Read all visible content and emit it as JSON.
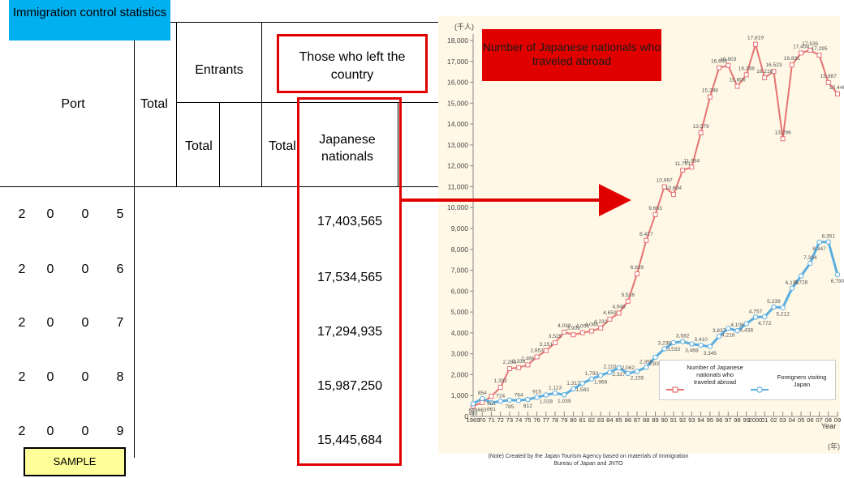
{
  "table": {
    "title": "Immigration control statistics",
    "port_header": "Port",
    "total_header": "Total",
    "entrants_header": "Entrants",
    "entrants_total": "Total",
    "left_header": "Those who left the country",
    "left_total": "Total",
    "jp_header": "Japanese nationals",
    "rows": [
      {
        "y": [
          "2",
          "0",
          "0",
          "5"
        ],
        "jp": "17,403,565"
      },
      {
        "y": [
          "2",
          "0",
          "0",
          "6"
        ],
        "jp": "17,534,565"
      },
      {
        "y": [
          "2",
          "0",
          "0",
          "7"
        ],
        "jp": "17,294,935"
      },
      {
        "y": [
          "2",
          "0",
          "0",
          "8"
        ],
        "jp": "15,987,250"
      },
      {
        "y": [
          "2",
          "0",
          "0",
          "9"
        ],
        "jp": "15,445,684"
      }
    ],
    "sample_label": "SAMPLE"
  },
  "colors": {
    "highlight_red": "#e00000",
    "title_blue": "#00b0f0",
    "sample_yellow": "#ffff99",
    "series_japanese": "#e57373",
    "series_foreigners": "#5aaee0"
  },
  "chart_data": {
    "type": "line",
    "title": "Number of Japanese nationals who traveled abroad",
    "unit_label": "(千人)",
    "year_unit_label": "(年)",
    "xlabel": "Year",
    "ylim": [
      0,
      18000
    ],
    "y_ticks": [
      "18,000",
      "17,000",
      "16,000",
      "15,000",
      "14,000",
      "13,000",
      "12,000",
      "11,000",
      "10,000",
      "9,000",
      "8,000",
      "7,000",
      "6,000",
      "5,000",
      "4,000",
      "3,000",
      "2,000",
      "1,000",
      "0"
    ],
    "x": [
      "1969",
      "70",
      "71",
      "72",
      "73",
      "74",
      "75",
      "76",
      "77",
      "78",
      "79",
      "80",
      "81",
      "82",
      "83",
      "84",
      "85",
      "86",
      "87",
      "88",
      "89",
      "90",
      "91",
      "92",
      "93",
      "94",
      "95",
      "96",
      "97",
      "98",
      "99",
      "2000",
      "01",
      "02",
      "03",
      "04",
      "05",
      "06",
      "07",
      "08",
      "09"
    ],
    "series": [
      {
        "name": "Number of Japanese nationals who traveled abroad",
        "values": [
          493,
          663,
          961,
          1392,
          2289,
          2336,
          2466,
          2853,
          3151,
          3525,
          4038,
          3909,
          4006,
          4086,
          4232,
          4659,
          4948,
          5516,
          6829,
          8427,
          9663,
          10997,
          10634,
          11791,
          11934,
          13579,
          15298,
          16695,
          16803,
          15806,
          16358,
          17819,
          16216,
          16523,
          13296,
          16831,
          17404,
          17535,
          17295,
          15987,
          15446
        ]
      },
      {
        "name": "Foreigners visiting Japan",
        "values": [
          609,
          854,
          661,
          724,
          785,
          764,
          812,
          915,
          1028,
          1113,
          1039,
          1317,
          1583,
          1793,
          1968,
          2110,
          2327,
          2062,
          2155,
          2355,
          2835,
          3236,
          3533,
          3582,
          3468,
          3410,
          3345,
          3837,
          4218,
          4106,
          4438,
          4757,
          4772,
          5239,
          5212,
          6138,
          6728,
          7334,
          8347,
          8351,
          6790
        ]
      }
    ],
    "data_labels_jp": [
      "493",
      "663",
      "961",
      "1,392",
      "2,289",
      "2,336",
      "2,466",
      "2,853",
      "3,151",
      "3,525",
      "4,038",
      "3,909",
      "4,006",
      "4,086",
      "4,232",
      "4,659",
      "4,948",
      "5,516",
      "6,829",
      "8,427",
      "9,663",
      "10,997",
      "10,634",
      "11,791",
      "11,934",
      "13,579",
      "15,298",
      "16,695",
      "16,803",
      "15,806",
      "16,358",
      "17,819",
      "16,216",
      "16,523",
      "13,296",
      "16,831",
      "17,404",
      "17,535",
      "17,295",
      "15,987",
      "15,446"
    ],
    "data_labels_fv": [
      "609",
      "854",
      "661",
      "724",
      "785",
      "764",
      "812",
      "915",
      "1,028",
      "1,113",
      "1,039",
      "1,317",
      "1,583",
      "1,793",
      "1,968",
      "2,110",
      "2,327",
      "2,062",
      "2,155",
      "2,355",
      "2,835",
      "3,236",
      "3,533",
      "3,582",
      "3,468",
      "3,410",
      "3,345",
      "3,837",
      "4,218",
      "4,106",
      "4,438",
      "4,757",
      "4,772",
      "5,239",
      "5,212",
      "6,138",
      "6,728",
      "7,334",
      "8,347",
      "8,351",
      "6,790"
    ],
    "legend": [
      {
        "label": "Number of Japanese nationals who traveled abroad"
      },
      {
        "label": "Foreigners visiting Japan"
      }
    ],
    "legend_placement": "bottom-right",
    "grid": false,
    "note": "(Note) Created by the Japan Tourism Agency based on materials of Immigration Bureau of Japan and JNTO"
  }
}
